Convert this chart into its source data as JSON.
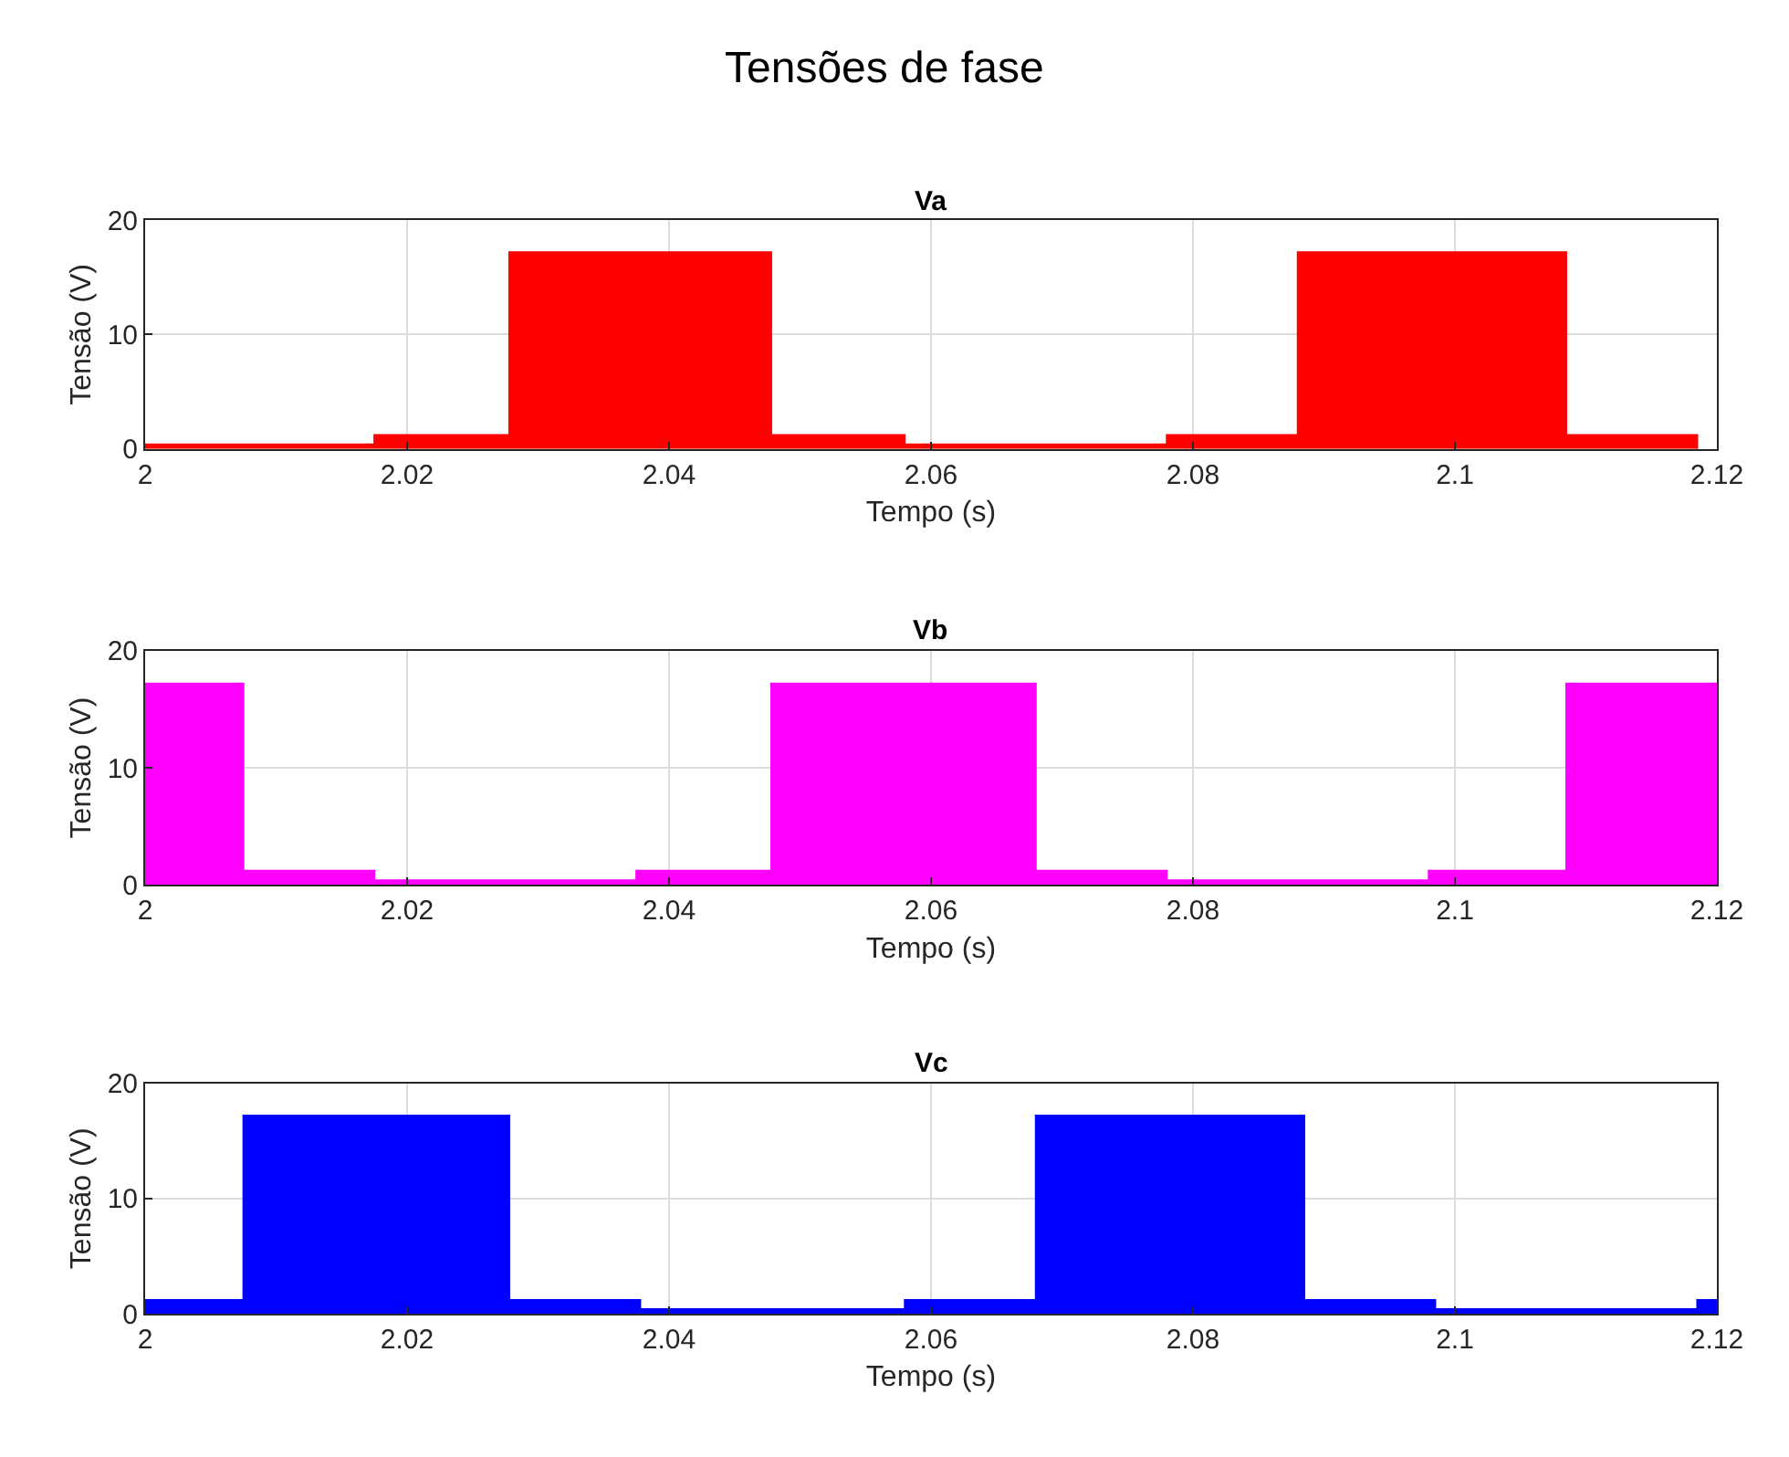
{
  "chart_data": [
    {
      "type": "area",
      "title": "Va",
      "xlabel": "Tempo (s)",
      "ylabel": "Tensão (V)",
      "annotations": [
        "Tensões de fase"
      ],
      "x": [
        2,
        2.0175,
        2.0175,
        2.0278,
        2.0278,
        2.0478,
        2.0478,
        2.058,
        2.058,
        2.078,
        2.078,
        2.088,
        2.088,
        2.1085,
        2.1085,
        2.1185,
        2.1185
      ],
      "series": [
        {
          "color": "#ff0000",
          "values": [
            0.4,
            0.4,
            1.2,
            1.2,
            17.2,
            17.2,
            1.2,
            1.2,
            0.4,
            0.4,
            1.2,
            1.2,
            17.2,
            17.2,
            1.2,
            1.2,
            0
          ]
        }
      ],
      "xlim": [
        2,
        2.12
      ],
      "xticks": [
        2,
        2.02,
        2.04,
        2.06,
        2.08,
        2.1,
        2.12
      ],
      "ylim": [
        0,
        20
      ],
      "yticks": [
        0,
        10,
        20
      ],
      "grid": true
    },
    {
      "type": "area",
      "title": "Vb",
      "xlabel": "Tempo (s)",
      "ylabel": "Tensão (V)",
      "x": [
        2,
        2.0075,
        2.0075,
        2.0175,
        2.0175,
        2.0375,
        2.0375,
        2.0478,
        2.0478,
        2.068,
        2.068,
        2.078,
        2.078,
        2.098,
        2.098,
        2.1085,
        2.1085,
        2.12
      ],
      "series": [
        {
          "color": "#ff00ff",
          "values": [
            17.2,
            17.2,
            1.2,
            1.2,
            0.4,
            0.4,
            1.2,
            1.2,
            17.2,
            17.2,
            1.2,
            1.2,
            0.4,
            0.4,
            1.2,
            1.2,
            17.2,
            17.2
          ]
        }
      ],
      "xlim": [
        2,
        2.12
      ],
      "xticks": [
        2,
        2.02,
        2.04,
        2.06,
        2.08,
        2.1,
        2.12
      ],
      "ylim": [
        0,
        20
      ],
      "yticks": [
        0,
        10,
        20
      ],
      "grid": true
    },
    {
      "type": "area",
      "title": "Vc",
      "xlabel": "Tempo (s)",
      "ylabel": "Tensão (V)",
      "x": [
        2,
        2.0075,
        2.0075,
        2.0278,
        2.0278,
        2.0378,
        2.0378,
        2.058,
        2.058,
        2.068,
        2.068,
        2.0885,
        2.0885,
        2.0985,
        2.0985,
        2.1185,
        2.1185,
        2.12
      ],
      "series": [
        {
          "color": "#0000ff",
          "values": [
            1.2,
            1.2,
            17.2,
            17.2,
            1.2,
            1.2,
            0.4,
            0.4,
            1.2,
            1.2,
            17.2,
            17.2,
            1.2,
            1.2,
            0.4,
            0.4,
            1.2,
            1.2
          ]
        }
      ],
      "xlim": [
        2,
        2.12
      ],
      "xticks": [
        2,
        2.02,
        2.04,
        2.06,
        2.08,
        2.1,
        2.12
      ],
      "ylim": [
        0,
        20
      ],
      "yticks": [
        0,
        10,
        20
      ],
      "grid": true
    }
  ]
}
